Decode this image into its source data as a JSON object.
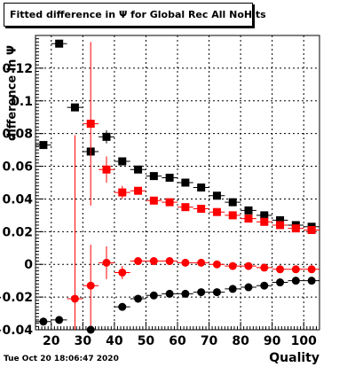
{
  "title": "Fitted difference in  Ψ  for Global Rec All NoHits",
  "ylabel": "difference in  Ψ",
  "xlabel": "Quality",
  "datestamp": "Tue Oct 20 18:06:47 2020",
  "chart_data": {
    "type": "scatter",
    "xlim": [
      15,
      105
    ],
    "ylim": [
      -0.04,
      0.14
    ],
    "xticks": [
      20,
      30,
      40,
      50,
      60,
      70,
      80,
      90,
      100
    ],
    "yticks": [
      -0.04,
      -0.02,
      0,
      0.02,
      0.04,
      0.06,
      0.08,
      0.1,
      0.12
    ],
    "ytick_labels": [
      "−0.04",
      "−0.02",
      "0",
      "0.02",
      "0.04",
      "0.06",
      "0.08",
      "0.1",
      "0.12"
    ],
    "grid": true,
    "series": [
      {
        "marker": "square",
        "color": "#000000",
        "x": [
          17.5,
          22.5,
          27.5,
          32.5,
          37.5,
          42.5,
          47.5,
          52.5,
          57.5,
          62.5,
          67.5,
          72.5,
          77.5,
          82.5,
          87.5,
          92.5,
          97.5,
          102.5
        ],
        "y": [
          0.073,
          0.135,
          0.096,
          0.069,
          0.078,
          0.063,
          0.058,
          0.054,
          0.053,
          0.05,
          0.047,
          0.042,
          0.038,
          0.033,
          0.03,
          0.027,
          0.024,
          0.023
        ],
        "yerr": [
          0,
          0,
          0,
          0,
          0.004,
          0.002,
          0,
          0,
          0,
          0,
          0,
          0,
          0,
          0,
          0,
          0,
          0,
          0
        ]
      },
      {
        "marker": "square",
        "color": "#ff0000",
        "x": [
          32.5,
          37.5,
          42.5,
          47.5,
          52.5,
          57.5,
          62.5,
          67.5,
          72.5,
          77.5,
          82.5,
          87.5,
          92.5,
          97.5,
          102.5
        ],
        "y": [
          0.086,
          0.058,
          0.044,
          0.045,
          0.039,
          0.038,
          0.035,
          0.034,
          0.032,
          0.03,
          0.028,
          0.026,
          0.024,
          0.022,
          0.021
        ],
        "yerr": [
          0.05,
          0.008,
          0.004,
          0.002,
          0,
          0,
          0,
          0,
          0,
          0,
          0,
          0,
          0,
          0,
          0
        ]
      },
      {
        "marker": "circle",
        "color": "#ff0000",
        "x": [
          27.5,
          32.5,
          37.5,
          42.5,
          47.5,
          52.5,
          57.5,
          62.5,
          67.5,
          72.5,
          77.5,
          82.5,
          87.5,
          92.5,
          97.5,
          102.5
        ],
        "y": [
          -0.021,
          -0.013,
          0.001,
          -0.005,
          0.002,
          0.002,
          0.002,
          0.001,
          0.001,
          0.0,
          -0.001,
          -0.001,
          -0.002,
          -0.003,
          -0.003,
          -0.003
        ],
        "yerr": [
          0.1,
          0.025,
          0.01,
          0.004,
          0,
          0,
          0,
          0,
          0,
          0,
          0,
          0,
          0,
          0,
          0,
          0
        ]
      },
      {
        "marker": "circle",
        "color": "#000000",
        "x": [
          17.5,
          22.5,
          32.5,
          42.5,
          47.5,
          52.5,
          57.5,
          62.5,
          67.5,
          72.5,
          77.5,
          82.5,
          87.5,
          92.5,
          97.5,
          102.5
        ],
        "y": [
          -0.035,
          -0.034,
          -0.04,
          -0.026,
          -0.021,
          -0.019,
          -0.018,
          -0.018,
          -0.017,
          -0.017,
          -0.015,
          -0.014,
          -0.013,
          -0.011,
          -0.01,
          -0.01
        ],
        "yerr": [
          0,
          0,
          0,
          0,
          0,
          0,
          0,
          0,
          0,
          0,
          0,
          0,
          0,
          0,
          0,
          0
        ]
      }
    ]
  }
}
